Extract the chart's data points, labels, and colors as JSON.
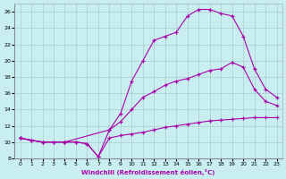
{
  "xlabel": "Windchill (Refroidissement éolien,°C)",
  "background_color": "#c8eef0",
  "grid_color": "#aacccc",
  "line_color": "#aa00aa",
  "xlim": [
    -0.5,
    23.5
  ],
  "ylim": [
    8,
    27
  ],
  "yticks": [
    8,
    10,
    12,
    14,
    16,
    18,
    20,
    22,
    24,
    26
  ],
  "xticks": [
    0,
    1,
    2,
    3,
    4,
    5,
    6,
    7,
    8,
    9,
    10,
    11,
    12,
    13,
    14,
    15,
    16,
    17,
    18,
    19,
    20,
    21,
    22,
    23
  ],
  "line1_x": [
    0,
    1,
    2,
    3,
    4,
    5,
    6,
    7,
    8,
    9,
    10,
    11,
    12,
    13,
    14,
    15,
    16,
    17,
    18,
    19,
    20,
    21,
    22,
    23
  ],
  "line1_y": [
    10.5,
    10.2,
    10.0,
    10.0,
    10.0,
    10.0,
    9.8,
    8.2,
    10.5,
    10.8,
    11.0,
    11.2,
    11.5,
    11.8,
    12.0,
    12.2,
    12.4,
    12.6,
    12.7,
    12.8,
    12.9,
    13.0,
    13.0,
    13.0
  ],
  "line2_x": [
    0,
    1,
    2,
    3,
    4,
    5,
    6,
    7,
    8,
    9,
    10,
    11,
    12,
    13,
    14,
    15,
    16,
    17,
    18,
    19,
    20,
    21,
    22,
    23
  ],
  "line2_y": [
    10.5,
    10.2,
    10.0,
    10.0,
    10.0,
    10.0,
    9.8,
    8.2,
    11.5,
    13.5,
    17.5,
    20.0,
    22.5,
    23.0,
    23.5,
    25.5,
    26.3,
    26.3,
    25.8,
    25.5,
    23.0,
    19.0,
    16.5,
    15.5
  ],
  "line3_x": [
    0,
    2,
    4,
    8,
    9,
    10,
    11,
    12,
    13,
    14,
    15,
    16,
    17,
    18,
    19,
    20,
    21,
    22,
    23
  ],
  "line3_y": [
    10.5,
    10.0,
    10.0,
    11.5,
    12.5,
    14.0,
    15.5,
    16.2,
    17.0,
    17.5,
    17.8,
    18.3,
    18.8,
    19.0,
    19.8,
    19.2,
    16.5,
    15.0,
    14.5
  ]
}
